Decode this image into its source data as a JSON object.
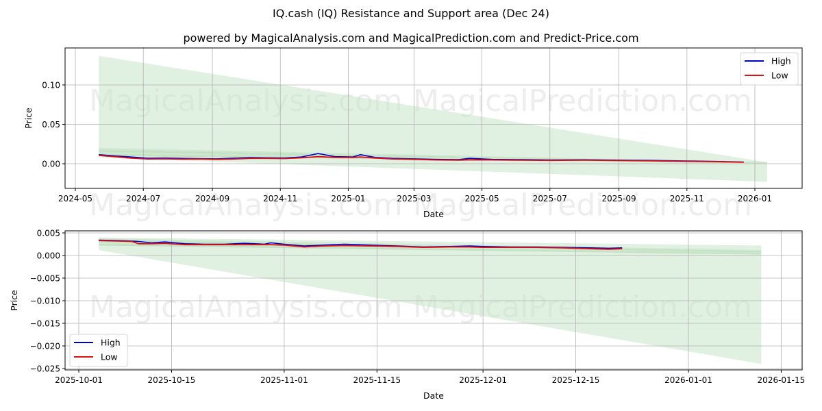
{
  "header": {
    "title": "IQ.cash (IQ) Resistance and Support area (Dec 24)",
    "subtitle": "powered by MagicalAnalysis.com and MagicalPrediction.com and Predict-Price.com"
  },
  "watermarks": [
    "MagicalAnalysis.com",
    "MagicalPrediction.com"
  ],
  "colors": {
    "high": "#0000cc",
    "low": "#dd1111",
    "band_light": "#c8e6c9",
    "band_dark": "#7fbf7f",
    "band_orange": "#f5c89a",
    "grid": "#b0b0b0"
  },
  "chart_data": [
    {
      "type": "line",
      "title": "",
      "xlabel": "Date",
      "ylabel": "Price",
      "ylim": [
        -0.032,
        0.145
      ],
      "grid": true,
      "legend_position": "upper right",
      "legend": [
        "High",
        "Low"
      ],
      "x_ticks": [
        "2024-05",
        "2024-07",
        "2024-09",
        "2024-11",
        "2025-01",
        "2025-03",
        "2025-05",
        "2025-07",
        "2025-09",
        "2025-11",
        "2026-01"
      ],
      "y_ticks": [
        "0.00",
        "0.05",
        "0.10"
      ],
      "x": [
        "2024-05-22",
        "2024-06-05",
        "2024-06-20",
        "2024-07-05",
        "2024-07-20",
        "2024-08-05",
        "2024-08-20",
        "2024-09-05",
        "2024-09-20",
        "2024-10-05",
        "2024-10-20",
        "2024-11-05",
        "2024-11-20",
        "2024-12-05",
        "2024-12-20",
        "2025-01-05",
        "2025-01-12",
        "2025-01-25",
        "2025-02-10",
        "2025-03-01",
        "2025-03-20",
        "2025-04-10",
        "2025-04-20",
        "2025-05-10",
        "2025-06-01",
        "2025-07-01",
        "2025-08-01",
        "2025-09-01",
        "2025-10-01",
        "2025-11-01",
        "2025-12-01",
        "2025-12-22"
      ],
      "series": [
        {
          "name": "High",
          "values": [
            0.0115,
            0.01,
            0.0085,
            0.007,
            0.0072,
            0.0068,
            0.0065,
            0.0062,
            0.007,
            0.0078,
            0.0075,
            0.0072,
            0.0085,
            0.013,
            0.009,
            0.0085,
            0.0115,
            0.008,
            0.0068,
            0.0062,
            0.0055,
            0.0052,
            0.0068,
            0.0055,
            0.0052,
            0.0048,
            0.005,
            0.0045,
            0.0042,
            0.0035,
            0.0028,
            0.0022
          ]
        },
        {
          "name": "Low",
          "values": [
            0.0105,
            0.009,
            0.007,
            0.006,
            0.0062,
            0.0058,
            0.006,
            0.0055,
            0.006,
            0.0068,
            0.0068,
            0.0065,
            0.0075,
            0.009,
            0.008,
            0.0078,
            0.0085,
            0.0072,
            0.006,
            0.0055,
            0.0048,
            0.0045,
            0.005,
            0.0048,
            0.0045,
            0.0042,
            0.0044,
            0.004,
            0.0036,
            0.003,
            0.0024,
            0.0018
          ]
        }
      ],
      "resistance_support_area": {
        "x_start": "2024-05-22",
        "x_end": "2026-01-12",
        "outer_upper": [
          0.137,
          0.002
        ],
        "outer_lower": [
          0.008,
          -0.023
        ],
        "inner_upper": [
          0.02,
          0.002
        ],
        "inner_lower": [
          0.01,
          0.0005
        ]
      }
    },
    {
      "type": "line",
      "title": "",
      "xlabel": "Date",
      "ylabel": "Price",
      "ylim": [
        -0.0257,
        0.0055
      ],
      "grid": true,
      "legend_position": "lower left",
      "legend": [
        "High",
        "Low"
      ],
      "x_ticks": [
        "2025-10-01",
        "2025-10-15",
        "2025-11-01",
        "2025-11-15",
        "2025-12-01",
        "2025-12-15",
        "2026-01-01",
        "2026-01-15"
      ],
      "y_ticks": [
        "0.005",
        "0.000",
        "-0.005",
        "-0.010",
        "-0.015",
        "-0.020",
        "-0.025"
      ],
      "x": [
        "2025-10-04",
        "2025-10-07",
        "2025-10-09",
        "2025-10-10",
        "2025-10-12",
        "2025-10-14",
        "2025-10-17",
        "2025-10-20",
        "2025-10-23",
        "2025-10-26",
        "2025-10-29",
        "2025-10-30",
        "2025-11-01",
        "2025-11-04",
        "2025-11-07",
        "2025-11-10",
        "2025-11-14",
        "2025-11-18",
        "2025-11-22",
        "2025-11-26",
        "2025-11-29",
        "2025-12-01",
        "2025-12-05",
        "2025-12-09",
        "2025-12-13",
        "2025-12-17",
        "2025-12-20",
        "2025-12-22"
      ],
      "series": [
        {
          "name": "High",
          "values": [
            0.0034,
            0.0033,
            0.0032,
            0.0031,
            0.0028,
            0.003,
            0.0026,
            0.0025,
            0.0025,
            0.0027,
            0.0025,
            0.0028,
            0.0025,
            0.0021,
            0.0023,
            0.0025,
            0.0023,
            0.0021,
            0.0019,
            0.002,
            0.0021,
            0.002,
            0.0019,
            0.0019,
            0.0018,
            0.0017,
            0.0016,
            0.0017
          ]
        },
        {
          "name": "Low",
          "values": [
            0.0033,
            0.0032,
            0.0031,
            0.0026,
            0.0026,
            0.0027,
            0.0024,
            0.0024,
            0.0024,
            0.0024,
            0.0024,
            0.0024,
            0.0023,
            0.0019,
            0.0021,
            0.0022,
            0.0021,
            0.002,
            0.0018,
            0.0019,
            0.0019,
            0.0018,
            0.0018,
            0.0018,
            0.0017,
            0.0015,
            0.0014,
            0.0015
          ]
        }
      ],
      "resistance_support_area": {
        "x_start": "2025-10-04",
        "x_end": "2026-01-12",
        "outer_upper": [
          0.004,
          0.0022
        ],
        "outer_lower": [
          0.0012,
          -0.024
        ],
        "inner_upper": [
          0.0038,
          0.0012
        ],
        "inner_lower": [
          0.0022,
          0.0002
        ]
      }
    }
  ]
}
